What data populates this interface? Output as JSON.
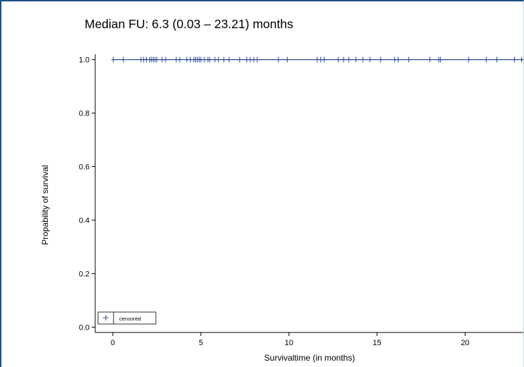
{
  "chart_data": {
    "type": "line",
    "title": "Median FU: 6.3 (0.03 – 23.21) months",
    "xlabel": "Survivaltime (in months)",
    "ylabel": "Propability of survival",
    "xlim": [
      -1,
      23.3
    ],
    "ylim": [
      -0.02,
      1.02
    ],
    "x_ticks": [
      0,
      5,
      10,
      15,
      20
    ],
    "x_tick_labels": [
      "0",
      "5",
      "10",
      "15",
      "20"
    ],
    "y_ticks": [
      0.0,
      0.2,
      0.4,
      0.6,
      0.8,
      1.0
    ],
    "y_tick_labels": [
      "0.0",
      "0.2",
      "0.4",
      "0.6",
      "0.8",
      "1.0"
    ],
    "grid": false,
    "legend": {
      "position": "bottom-left",
      "entries": [
        {
          "label": "censored",
          "marker": "plus"
        }
      ]
    },
    "series": [
      {
        "type": "step",
        "x": [
          0,
          23.3
        ],
        "y": [
          1.0,
          1.0
        ],
        "color": "#2b4a9e"
      }
    ],
    "censored": {
      "y": 1.0,
      "color": "#2b4a9e",
      "x": [
        0.03,
        0.6,
        1.6,
        1.75,
        1.9,
        2.1,
        2.2,
        2.3,
        2.4,
        2.5,
        2.8,
        3.0,
        3.6,
        3.8,
        4.2,
        4.4,
        4.6,
        4.7,
        4.8,
        4.9,
        5.0,
        5.2,
        5.4,
        5.5,
        5.8,
        6.0,
        6.3,
        6.6,
        7.2,
        7.6,
        7.8,
        8.0,
        8.2,
        9.4,
        9.9,
        11.6,
        11.8,
        12.0,
        12.8,
        13.1,
        13.4,
        13.8,
        14.2,
        14.6,
        15.2,
        16.0,
        16.2,
        16.8,
        18.0,
        18.5,
        18.6,
        20.2,
        21.2,
        21.8,
        22.8,
        23.2
      ]
    }
  }
}
